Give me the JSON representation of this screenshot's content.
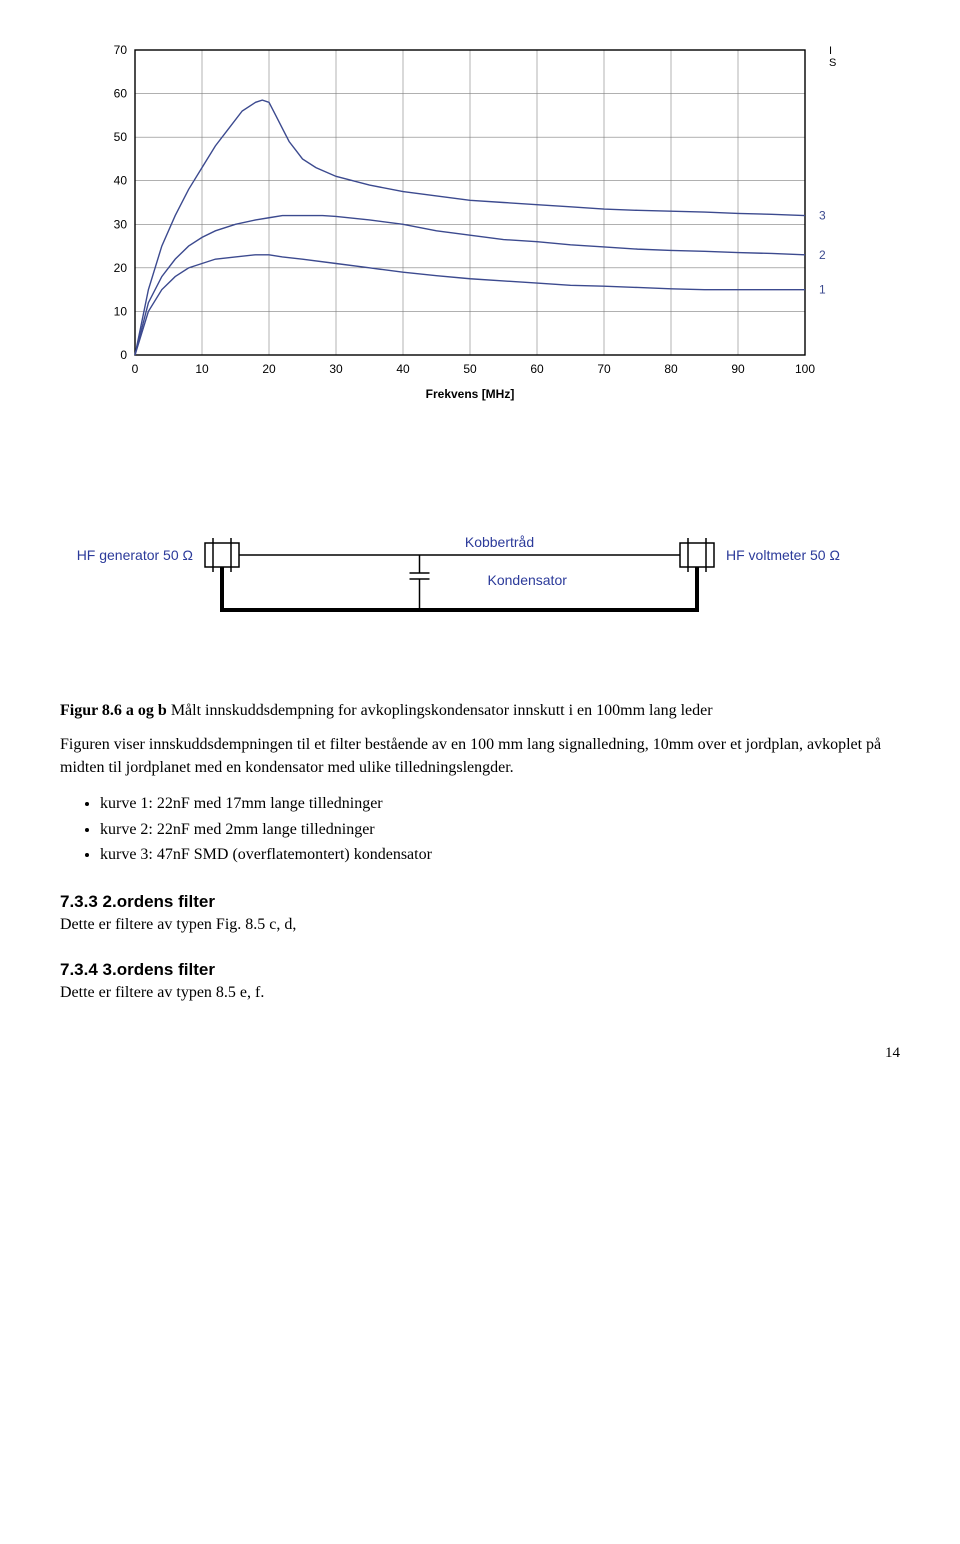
{
  "chart": {
    "type": "line",
    "xlabel": "Frekvens  [MHz]",
    "xlim": [
      0,
      100
    ],
    "ylim": [
      0,
      70
    ],
    "xtick_step": 10,
    "ytick_step": 10,
    "x_ticks": [
      0,
      10,
      20,
      30,
      40,
      50,
      60,
      70,
      80,
      90,
      100
    ],
    "y_ticks": [
      0,
      10,
      20,
      30,
      40,
      50,
      60,
      70
    ],
    "background_color": "#ffffff",
    "axis_color": "#000000",
    "grid_color": "#808080",
    "line_color": "#3c4a8f",
    "line_width": 1.4,
    "label_fontsize": 12,
    "tick_fontsize": 12,
    "series_labels": [
      "1",
      "2",
      "3"
    ],
    "series_label_color": "#3c4a8f",
    "series": [
      {
        "name": "1",
        "points": [
          [
            0,
            0
          ],
          [
            2,
            10
          ],
          [
            4,
            15
          ],
          [
            6,
            18
          ],
          [
            8,
            20
          ],
          [
            10,
            21
          ],
          [
            12,
            22
          ],
          [
            15,
            22.5
          ],
          [
            18,
            23
          ],
          [
            20,
            23
          ],
          [
            22,
            22.5
          ],
          [
            25,
            22
          ],
          [
            30,
            21
          ],
          [
            35,
            20
          ],
          [
            40,
            19
          ],
          [
            45,
            18.2
          ],
          [
            50,
            17.5
          ],
          [
            55,
            17
          ],
          [
            60,
            16.5
          ],
          [
            65,
            16
          ],
          [
            70,
            15.8
          ],
          [
            75,
            15.5
          ],
          [
            80,
            15.2
          ],
          [
            85,
            15
          ],
          [
            90,
            15
          ],
          [
            95,
            15
          ],
          [
            100,
            15
          ]
        ]
      },
      {
        "name": "2",
        "points": [
          [
            0,
            0
          ],
          [
            2,
            12
          ],
          [
            4,
            18
          ],
          [
            6,
            22
          ],
          [
            8,
            25
          ],
          [
            10,
            27
          ],
          [
            12,
            28.5
          ],
          [
            15,
            30
          ],
          [
            18,
            31
          ],
          [
            20,
            31.5
          ],
          [
            22,
            32
          ],
          [
            25,
            32
          ],
          [
            28,
            32
          ],
          [
            30,
            31.8
          ],
          [
            35,
            31
          ],
          [
            40,
            30
          ],
          [
            45,
            28.5
          ],
          [
            50,
            27.5
          ],
          [
            55,
            26.5
          ],
          [
            60,
            26
          ],
          [
            65,
            25.3
          ],
          [
            70,
            24.8
          ],
          [
            75,
            24.3
          ],
          [
            80,
            24
          ],
          [
            85,
            23.8
          ],
          [
            90,
            23.5
          ],
          [
            95,
            23.3
          ],
          [
            100,
            23
          ]
        ]
      },
      {
        "name": "3",
        "points": [
          [
            0,
            0
          ],
          [
            2,
            15
          ],
          [
            4,
            25
          ],
          [
            6,
            32
          ],
          [
            8,
            38
          ],
          [
            10,
            43
          ],
          [
            12,
            48
          ],
          [
            14,
            52
          ],
          [
            16,
            56
          ],
          [
            18,
            58
          ],
          [
            19,
            58.5
          ],
          [
            20,
            58
          ],
          [
            21,
            55
          ],
          [
            22,
            52
          ],
          [
            23,
            49
          ],
          [
            24,
            47
          ],
          [
            25,
            45
          ],
          [
            27,
            43
          ],
          [
            30,
            41
          ],
          [
            35,
            39
          ],
          [
            40,
            37.5
          ],
          [
            45,
            36.5
          ],
          [
            50,
            35.5
          ],
          [
            55,
            35
          ],
          [
            60,
            34.5
          ],
          [
            65,
            34
          ],
          [
            70,
            33.5
          ],
          [
            75,
            33.2
          ],
          [
            80,
            33
          ],
          [
            85,
            32.8
          ],
          [
            90,
            32.5
          ],
          [
            95,
            32.3
          ],
          [
            100,
            32
          ]
        ]
      }
    ],
    "right_marks": [
      "I",
      "S"
    ]
  },
  "diagram": {
    "type": "schematic",
    "left_label": "HF generator 50 Ω",
    "right_label": "HF voltmeter 50 Ω",
    "wire_label_top": "Kobbertråd",
    "wire_label_bottom": "Kondensator",
    "label_color": "#2b3a9a",
    "line_color": "#000000",
    "line_width": 1.5,
    "box_fill": "#ffffff",
    "label_fontsize": 14
  },
  "caption": {
    "prefix": "Figur 8.6 a og b",
    "text": " Målt innskuddsdempning for avkoplingskondensator innskutt i en 100mm lang leder"
  },
  "paragraph": "Figuren viser innskuddsdempningen til et filter bestående av en 100 mm lang signalledning, 10mm over et jordplan, avkoplet på midten til jordplanet med en  kondensator med ulike tilledningslengder.",
  "bullets": [
    "kurve 1:  22nF  med 17mm lange tilledninger",
    "kurve 2:  22nF med 2mm lange tilledninger",
    "kurve 3:  47nF SMD (overflatemontert) kondensator"
  ],
  "sections": [
    {
      "head": "7.3.3   2.ordens filter",
      "body": "Dette er filtere av typen Fig. 8.5 c, d,"
    },
    {
      "head": "7.3.4   3.ordens filter",
      "body": "Dette er filtere av typen  8.5 e, f."
    }
  ],
  "page_number": "14"
}
